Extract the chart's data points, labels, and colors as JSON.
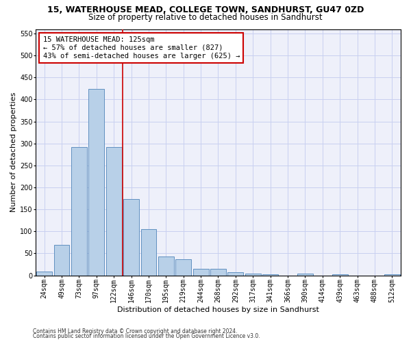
{
  "title1": "15, WATERHOUSE MEAD, COLLEGE TOWN, SANDHURST, GU47 0ZD",
  "title2": "Size of property relative to detached houses in Sandhurst",
  "xlabel": "Distribution of detached houses by size in Sandhurst",
  "ylabel": "Number of detached properties",
  "bar_labels": [
    "24sqm",
    "49sqm",
    "73sqm",
    "97sqm",
    "122sqm",
    "146sqm",
    "170sqm",
    "195sqm",
    "219sqm",
    "244sqm",
    "268sqm",
    "292sqm",
    "317sqm",
    "341sqm",
    "366sqm",
    "390sqm",
    "414sqm",
    "439sqm",
    "463sqm",
    "488sqm",
    "512sqm"
  ],
  "bar_values": [
    8,
    70,
    291,
    424,
    291,
    174,
    105,
    43,
    37,
    15,
    15,
    7,
    4,
    2,
    0,
    4,
    0,
    2,
    0,
    0,
    2
  ],
  "bar_color": "#b8d0e8",
  "bar_edge_color": "#6090c0",
  "vline_x_index": 4.5,
  "vline_color": "#cc0000",
  "annotation_title": "15 WATERHOUSE MEAD: 125sqm",
  "annotation_line1": "← 57% of detached houses are smaller (827)",
  "annotation_line2": "43% of semi-detached houses are larger (625) →",
  "annotation_box_color": "#ffffff",
  "annotation_box_edge": "#cc0000",
  "ylim": [
    0,
    560
  ],
  "yticks": [
    0,
    50,
    100,
    150,
    200,
    250,
    300,
    350,
    400,
    450,
    500,
    550
  ],
  "grid_color": "#c8d0f0",
  "bg_color": "#eef0fa",
  "footnote1": "Contains HM Land Registry data © Crown copyright and database right 2024.",
  "footnote2": "Contains public sector information licensed under the Open Government Licence v3.0.",
  "title1_fontsize": 9,
  "title2_fontsize": 8.5,
  "xlabel_fontsize": 8,
  "ylabel_fontsize": 8,
  "tick_fontsize": 7,
  "annotation_fontsize": 7.5,
  "footnote_fontsize": 5.5
}
